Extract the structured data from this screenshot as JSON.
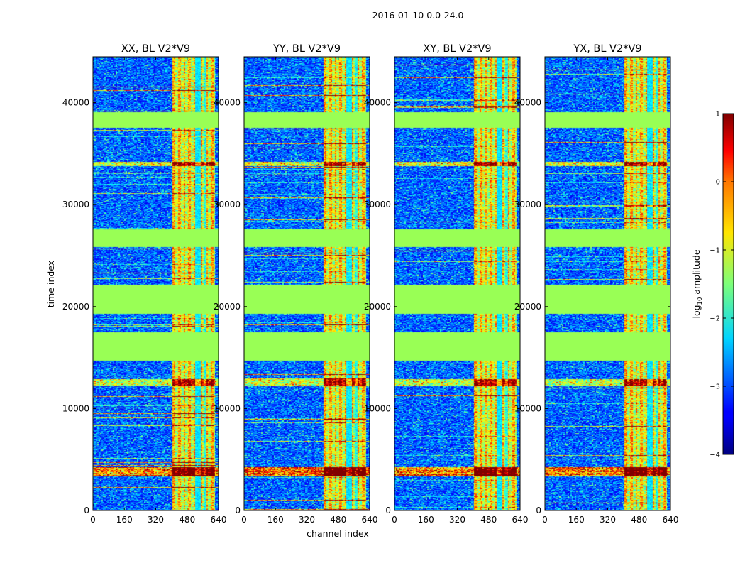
{
  "figure": {
    "suptitle": "2016-01-10 0.0-24.0",
    "xlabel": "channel index",
    "ylabel": "time index"
  },
  "chart_data": {
    "type": "heatmap",
    "x_range": [
      0,
      640
    ],
    "y_range": [
      0,
      44500
    ],
    "x_ticks": [
      0,
      160,
      320,
      480,
      640
    ],
    "y_ticks": [
      0,
      10000,
      20000,
      30000,
      40000
    ],
    "panels": [
      {
        "title": "XX, BL V2*V9",
        "variant": 0
      },
      {
        "title": "YY, BL V2*V9",
        "variant": 1
      },
      {
        "title": "XY, BL V2*V9",
        "variant": 2
      },
      {
        "title": "YX, BL V2*V9",
        "variant": 3
      }
    ],
    "flagged_time_ranges": [
      [
        14700,
        17500
      ],
      [
        19300,
        22200
      ],
      [
        25900,
        27600
      ],
      [
        37600,
        39100
      ]
    ],
    "bright_channel_range": [
      400,
      620
    ],
    "colorbar": {
      "label": "log",
      "label_sub": "10",
      "label_suffix": " amplitude",
      "range": [
        -4,
        1
      ],
      "ticks": [
        {
          "v": 1,
          "t": "1"
        },
        {
          "v": 0,
          "t": "0"
        },
        {
          "v": -1,
          "t": "−1"
        },
        {
          "v": -2,
          "t": "−2"
        },
        {
          "v": -3,
          "t": "−3"
        },
        {
          "v": -4,
          "t": "−4"
        }
      ]
    },
    "colors": {
      "flag_fill": "#99ff55",
      "background_low": "#0a1fd0"
    }
  }
}
